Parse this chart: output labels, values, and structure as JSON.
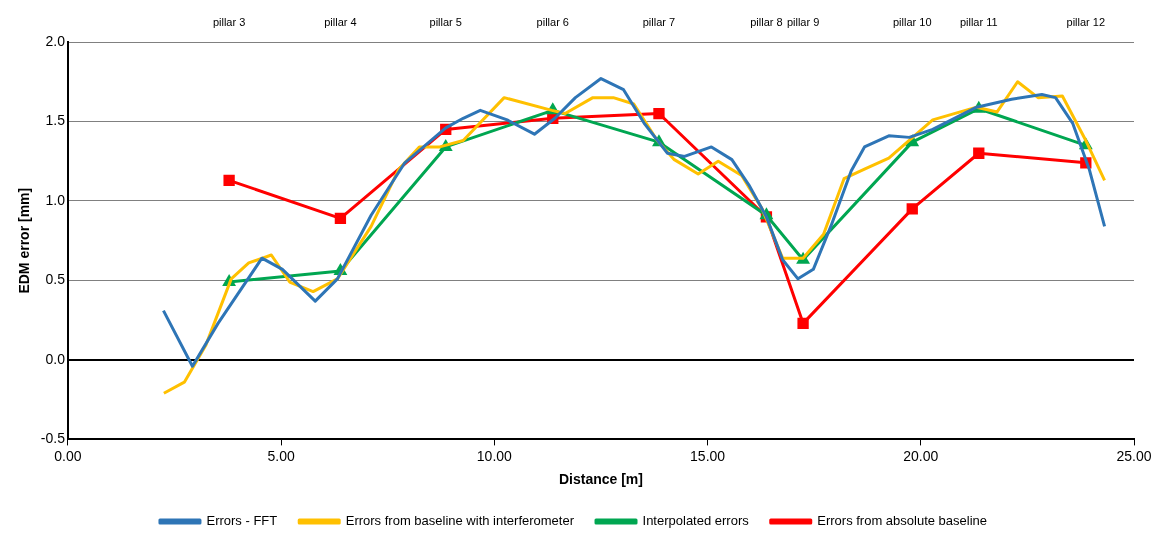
{
  "chart_data": {
    "type": "line",
    "xlabel": "Distance [m]",
    "ylabel": "EDM error [mm]",
    "xlim": [
      0,
      25
    ],
    "xticks": [
      {
        "value": 0,
        "label": "0.00"
      },
      {
        "value": 5,
        "label": "5.00"
      },
      {
        "value": 10,
        "label": "10.00"
      },
      {
        "value": 15,
        "label": "15.00"
      },
      {
        "value": 20,
        "label": "20.00"
      },
      {
        "value": 25,
        "label": "25.00"
      }
    ],
    "ylim": [
      -0.5,
      2
    ],
    "yticks": [
      -0.5,
      {
        "value": 0,
        "label": "0.0"
      },
      0.5,
      {
        "value": 1,
        "label": "1.0"
      },
      1.5,
      {
        "value": 2,
        "label": "2.0"
      }
    ],
    "grid": "y",
    "legend": "bottom",
    "line_style": "solid",
    "annotations": [
      "pillar 3",
      "pillar 4",
      "pillar 5",
      "pillar 6",
      "pillar 7",
      "pillar 8",
      "pillar 9",
      "pillar 10",
      "pillar 11",
      "pillar 12"
    ],
    "series": [
      {
        "name": "Errors - FFT",
        "color": "#2e75b6",
        "marker": "none",
        "x": [
          2.24,
          2.92,
          3.52,
          4.55,
          5.03,
          5.8,
          6.32,
          7.11,
          7.9,
          8.86,
          9.27,
          9.67,
          10.3,
          10.94,
          11.42,
          11.9,
          12.5,
          13.03,
          13.51,
          14.06,
          14.46,
          15.09,
          15.57,
          15.97,
          16.38,
          16.76,
          17.12,
          17.48,
          17.89,
          18.37,
          18.68,
          19.25,
          19.73,
          20.28,
          21.31,
          22.13,
          22.84,
          23.16,
          23.56,
          23.95,
          24.31
        ],
        "values": [
          0.31,
          -0.04,
          0.23,
          0.64,
          0.57,
          0.37,
          0.51,
          0.91,
          1.24,
          1.46,
          1.52,
          1.57,
          1.51,
          1.42,
          1.52,
          1.65,
          1.77,
          1.7,
          1.49,
          1.3,
          1.28,
          1.34,
          1.26,
          1.1,
          0.9,
          0.63,
          0.51,
          0.57,
          0.84,
          1.19,
          1.34,
          1.41,
          1.4,
          1.45,
          1.59,
          1.64,
          1.67,
          1.65,
          1.49,
          1.2,
          0.84
        ]
      },
      {
        "name": "Errors from baseline with interferometer",
        "color": "#ffc000",
        "marker": "none",
        "x": [
          2.25,
          2.73,
          3.23,
          3.83,
          4.24,
          4.77,
          5.2,
          5.75,
          6.32,
          7.11,
          7.76,
          8.24,
          8.72,
          9.27,
          10.23,
          11.35,
          11.66,
          12.31,
          12.79,
          13.27,
          13.82,
          14.22,
          14.78,
          15.25,
          15.8,
          16.28,
          16.76,
          17.24,
          17.72,
          18.2,
          18.68,
          19.25,
          20.28,
          21.31,
          21.79,
          22.27,
          22.75,
          23.32,
          23.87,
          24.31
        ],
        "values": [
          -0.21,
          -0.14,
          0.09,
          0.51,
          0.61,
          0.66,
          0.49,
          0.43,
          0.51,
          0.84,
          1.2,
          1.34,
          1.34,
          1.38,
          1.65,
          1.57,
          1.55,
          1.65,
          1.65,
          1.61,
          1.38,
          1.26,
          1.17,
          1.25,
          1.16,
          0.95,
          0.64,
          0.64,
          0.79,
          1.14,
          1.2,
          1.27,
          1.51,
          1.59,
          1.56,
          1.75,
          1.65,
          1.66,
          1.38,
          1.13
        ]
      },
      {
        "name": "Interpolated errors",
        "color": "#00a651",
        "marker": "triangle",
        "x": [
          3.78,
          6.39,
          8.86,
          11.37,
          13.86,
          16.38,
          17.24,
          19.8,
          21.36,
          23.87
        ],
        "values": [
          0.49,
          0.56,
          1.34,
          1.57,
          1.37,
          0.91,
          0.63,
          1.37,
          1.58,
          1.35
        ]
      },
      {
        "name": "Errors from absolute baseline",
        "color": "#ff0000",
        "marker": "square",
        "x": [
          3.78,
          6.39,
          8.86,
          11.37,
          13.86,
          16.38,
          17.24,
          19.8,
          21.36,
          23.87
        ],
        "values": [
          1.13,
          0.89,
          1.45,
          1.52,
          1.55,
          0.9,
          0.23,
          0.95,
          1.3,
          1.24
        ]
      }
    ]
  }
}
